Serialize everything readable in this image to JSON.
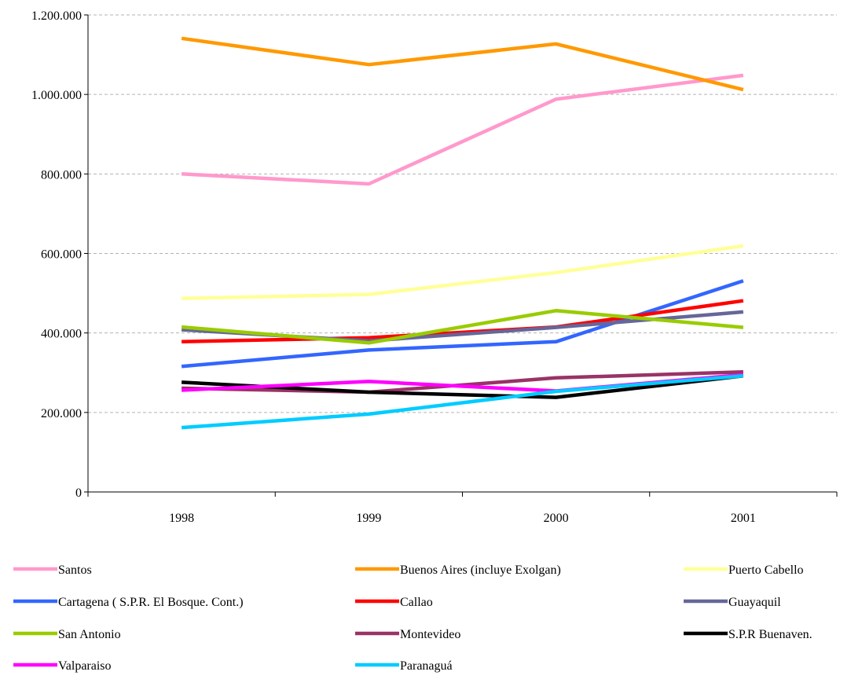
{
  "chart_data": {
    "type": "line",
    "title": "",
    "xlabel": "",
    "ylabel": "",
    "categories": [
      "1998",
      "1999",
      "2000",
      "2001"
    ],
    "ylim": [
      0,
      1200000
    ],
    "yticks": [
      0,
      200000,
      400000,
      600000,
      800000,
      1000000,
      1200000
    ],
    "ytick_labels": [
      "0",
      "200.000",
      "400.000",
      "600.000",
      "800.000",
      "1.000.000",
      "1.200.000"
    ],
    "grid": "horizontal dashed",
    "legend_position": "bottom",
    "series": [
      {
        "name": "Santos",
        "color": "#ff99cc",
        "values": [
          800000,
          775000,
          988000,
          1048000
        ]
      },
      {
        "name": "Buenos Aires (incluye Exolgan)",
        "color": "#ff9900",
        "values": [
          1141000,
          1075000,
          1127000,
          1012000
        ]
      },
      {
        "name": "Puerto Cabello",
        "color": "#ffff99",
        "values": [
          487000,
          497000,
          552000,
          619000
        ]
      },
      {
        "name": "Cartagena ( S.P.R. El Bosque. Cont.)",
        "color": "#3366ff",
        "values": [
          316000,
          357000,
          378000,
          531000
        ]
      },
      {
        "name": "Callao",
        "color": "#ff0000",
        "values": [
          378000,
          388000,
          415000,
          481000
        ]
      },
      {
        "name": "Guayaquil",
        "color": "#666699",
        "values": [
          408000,
          380000,
          414000,
          453000
        ]
      },
      {
        "name": "San Antonio",
        "color": "#99cc00",
        "values": [
          415000,
          375000,
          456000,
          414000
        ]
      },
      {
        "name": "Montevideo",
        "color": "#993366",
        "values": [
          261000,
          251000,
          287000,
          302000
        ]
      },
      {
        "name": "S.P.R Buenaven.",
        "color": "#000000",
        "values": [
          276000,
          251000,
          238000,
          292000
        ]
      },
      {
        "name": "Valparaiso",
        "color": "#ff00ff",
        "values": [
          256000,
          278000,
          254000,
          295000
        ]
      },
      {
        "name": "Paranaguá",
        "color": "#00ccff",
        "values": [
          162000,
          196000,
          253000,
          292000
        ]
      }
    ]
  }
}
